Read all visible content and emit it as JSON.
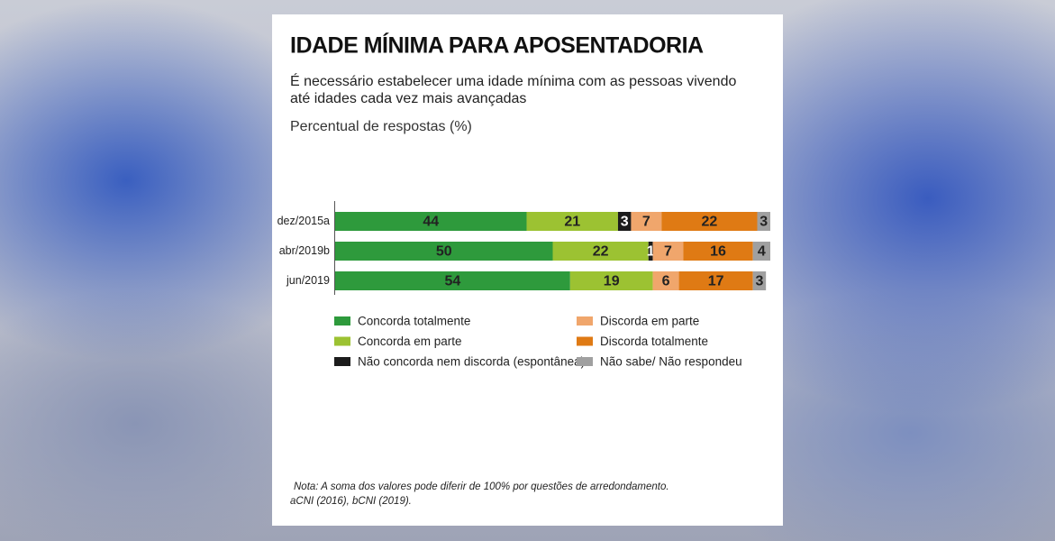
{
  "chart_data": {
    "type": "stacked_bar_horizontal",
    "title": "IDADE MÍNIMA PARA APOSENTADORIA",
    "subtitle": [
      "É necessário estabelecer uma idade mínima com as pessoas vivendo",
      "até idades cada vez mais avançadas"
    ],
    "x_label": "Percentual de respostas (%)",
    "categories": [
      "dez/2015a",
      "abr/2019b",
      "jun/2019"
    ],
    "xlim": [
      0,
      100
    ],
    "series": [
      {
        "name": "Concorda totalmente",
        "color": "#2e9a3c",
        "values": [
          44,
          50,
          54
        ]
      },
      {
        "name": "Concorda em parte",
        "color": "#9cc232",
        "values": [
          21,
          22,
          19
        ]
      },
      {
        "name": "Não concorda nem discorda (espontânea)",
        "color": "#1c1c1c",
        "values": [
          3,
          1,
          null
        ]
      },
      {
        "name": "Discorda em parte",
        "color": "#f0a66c",
        "values": [
          7,
          7,
          6
        ]
      },
      {
        "name": "Discorda totalmente",
        "color": "#df7a14",
        "values": [
          22,
          16,
          17
        ]
      },
      {
        "name": "Não sabe/ Não respondeu",
        "color": "#a0a0a0",
        "values": [
          3,
          4,
          3
        ]
      }
    ],
    "notes": [
      "Nota: A soma dos valores pode diferir de 100% por questões de arredondamento.",
      "aCNI (2016), bCNI (2019)."
    ]
  }
}
